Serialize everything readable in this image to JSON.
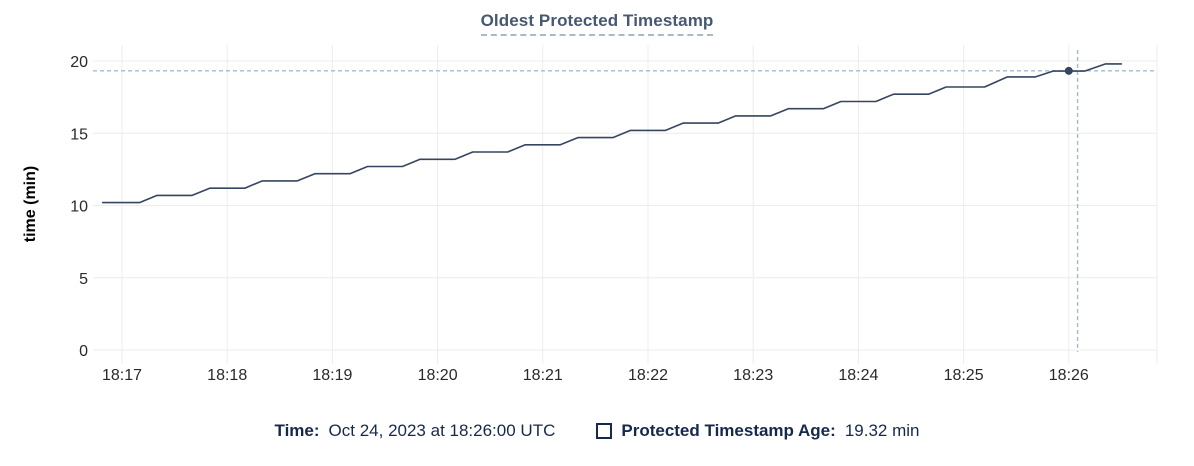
{
  "title": "Oldest Protected Timestamp",
  "tooltip_bar": {
    "time_label": "Time:",
    "time_value": "Oct 24, 2023 at 18:26:00 UTC",
    "series_label": "Protected Timestamp Age:",
    "series_value": "19.32 min"
  },
  "colors": {
    "title": "#475872",
    "title_underline": "#a9b9ca",
    "series_line": "#36465f",
    "hover_dot": "#36465f",
    "grid": "#ececec",
    "crosshair": "#a2bccb",
    "tick_label": "#27292c",
    "legend_text": "#16294d",
    "background": "#ffffff"
  },
  "chart_data": {
    "type": "line",
    "title": "Oldest Protected Timestamp",
    "xlabel": "",
    "ylabel": "time (min)",
    "ylim": [
      0,
      20
    ],
    "y_ticks": [
      0,
      5,
      10,
      15,
      20
    ],
    "x_ticks": [
      "18:17",
      "18:18",
      "18:19",
      "18:20",
      "18:21",
      "18:22",
      "18:23",
      "18:24",
      "18:25",
      "18:26"
    ],
    "x_tick_interval_seconds": 60,
    "grid": true,
    "legend_position": "bottom",
    "series": [
      {
        "name": "Protected Timestamp Age",
        "unit": "min",
        "points_t_seconds_from_1817": [
          [
            -11,
            10.2
          ],
          [
            10,
            10.2
          ],
          [
            20,
            10.7
          ],
          [
            40,
            10.7
          ],
          [
            50,
            11.2
          ],
          [
            70,
            11.2
          ],
          [
            80,
            11.7
          ],
          [
            100,
            11.7
          ],
          [
            110,
            12.2
          ],
          [
            130,
            12.2
          ],
          [
            140,
            12.7
          ],
          [
            160,
            12.7
          ],
          [
            170,
            13.2
          ],
          [
            190,
            13.2
          ],
          [
            200,
            13.7
          ],
          [
            220,
            13.7
          ],
          [
            230,
            14.2
          ],
          [
            250,
            14.2
          ],
          [
            260,
            14.7
          ],
          [
            280,
            14.7
          ],
          [
            290,
            15.2
          ],
          [
            310,
            15.2
          ],
          [
            320,
            15.7
          ],
          [
            340,
            15.7
          ],
          [
            350,
            16.2
          ],
          [
            370,
            16.2
          ],
          [
            380,
            16.7
          ],
          [
            400,
            16.7
          ],
          [
            410,
            17.2
          ],
          [
            430,
            17.2
          ],
          [
            440,
            17.7
          ],
          [
            460,
            17.7
          ],
          [
            470,
            18.2
          ],
          [
            492,
            18.2
          ],
          [
            505,
            18.9
          ],
          [
            521,
            18.9
          ],
          [
            531,
            19.3
          ],
          [
            549,
            19.3
          ],
          [
            561,
            19.8
          ],
          [
            570,
            19.8
          ]
        ]
      }
    ],
    "hover": {
      "point_t_seconds": 540,
      "point_time_label": "18:26:00 UTC",
      "point_value": 19.32,
      "cursor_t_seconds": 545
    }
  }
}
